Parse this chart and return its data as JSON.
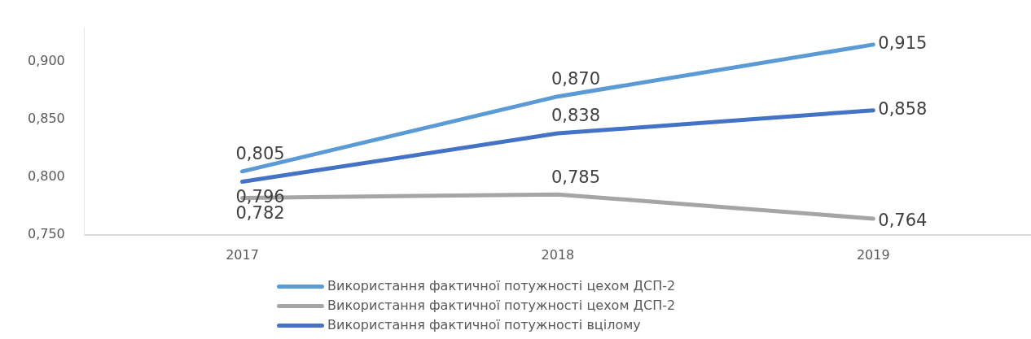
{
  "chart_data": {
    "type": "line",
    "categories": [
      "2017",
      "2018",
      "2019"
    ],
    "series": [
      {
        "name": "Використання фактичної потужності цехом ДСП-2",
        "color": "#5b9bd5",
        "values": [
          0.805,
          0.87,
          0.915
        ],
        "value_labels": [
          "0,805",
          "0,870",
          "0,915"
        ]
      },
      {
        "name": "Використання фактичної потужності цехом ДСП-2",
        "color": "#a5a5a5",
        "values": [
          0.782,
          0.785,
          0.764
        ],
        "value_labels": [
          "0,782",
          "0,785",
          "0,764"
        ]
      },
      {
        "name": "Використання фактичної потужності вцілому",
        "color": "#4472c4",
        "values": [
          0.796,
          0.838,
          0.858
        ],
        "value_labels": [
          "0,796",
          "0,838",
          "0,858"
        ]
      }
    ],
    "ylim": [
      0.75,
      0.93
    ],
    "yticks": [
      {
        "value": 0.75,
        "label": "0,750"
      },
      {
        "value": 0.8,
        "label": "0,800"
      },
      {
        "value": 0.85,
        "label": "0,850"
      },
      {
        "value": 0.9,
        "label": "0,900"
      }
    ],
    "grid": false,
    "legend": "bottom",
    "marker": "none",
    "line_style": "solid"
  }
}
